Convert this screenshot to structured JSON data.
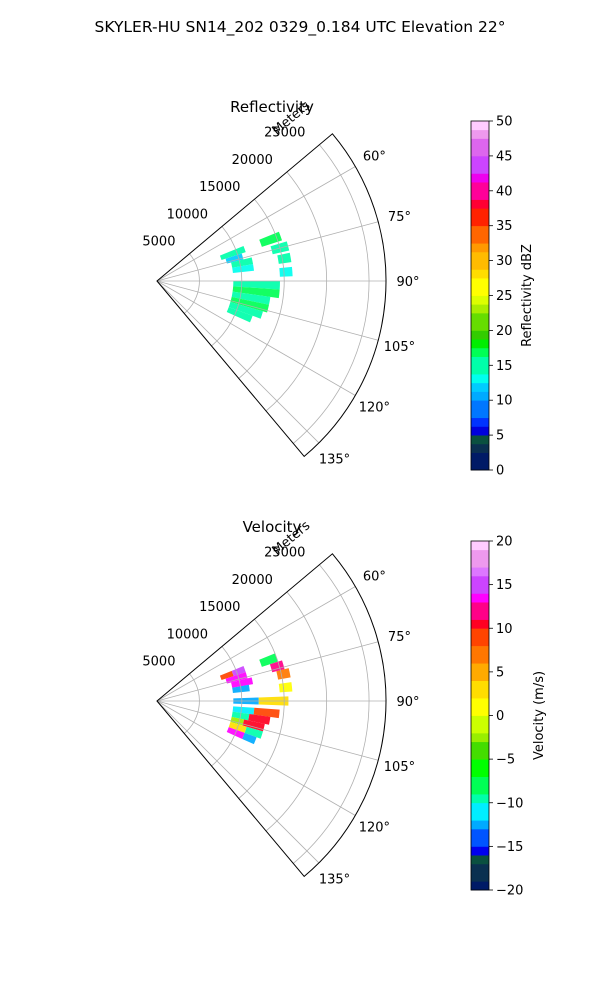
{
  "title": "SKYLER-HU  SN14_202  0329_0.184 UTC Elevation 22°",
  "chart_data": [
    {
      "type": "heatmap",
      "projection": "polar",
      "title": "Reflectivity",
      "range_axis_label": "Meters",
      "range_ticks": [
        5000,
        10000,
        15000,
        20000,
        25000
      ],
      "range_tick_labels": [
        "5000",
        "10000",
        "15000",
        "20000",
        "25000"
      ],
      "range_lim": [
        0,
        27000
      ],
      "azimuth_lim": [
        50,
        140
      ],
      "azimuth_ticks": [
        60,
        75,
        90,
        105,
        120,
        135
      ],
      "azimuth_tick_labels": [
        "60°",
        "75°",
        "90°",
        "105°",
        "120°",
        "135°"
      ],
      "grid": true,
      "colorbar": {
        "label": "Reflectivity dBZ",
        "range": [
          0,
          50
        ],
        "ticks": [
          0,
          5,
          10,
          15,
          20,
          25,
          30,
          35,
          40,
          45,
          50
        ],
        "tick_labels": [
          "0",
          "5",
          "10",
          "15",
          "20",
          "25",
          "30",
          "35",
          "40",
          "45",
          "50"
        ]
      },
      "cells": [
        {
          "az": 70,
          "r1": 8000,
          "r2": 11000,
          "value": 14
        },
        {
          "az": 74,
          "r1": 8500,
          "r2": 10500,
          "value": 12
        },
        {
          "az": 78,
          "r1": 9000,
          "r2": 11500,
          "value": 15
        },
        {
          "az": 82,
          "r1": 9000,
          "r2": 11500,
          "value": 13
        },
        {
          "az": 70,
          "r1": 13000,
          "r2": 15500,
          "value": 16
        },
        {
          "az": 75,
          "r1": 14000,
          "r2": 16000,
          "value": 14
        },
        {
          "az": 80,
          "r1": 14500,
          "r2": 16000,
          "value": 15
        },
        {
          "az": 86,
          "r1": 14500,
          "r2": 16000,
          "value": 13
        },
        {
          "az": 92,
          "r1": 9000,
          "r2": 14500,
          "value": 15
        },
        {
          "az": 96,
          "r1": 9000,
          "r2": 14500,
          "value": 16
        },
        {
          "az": 100,
          "r1": 9000,
          "r2": 13500,
          "value": 15
        },
        {
          "az": 104,
          "r1": 9000,
          "r2": 13500,
          "value": 16
        },
        {
          "az": 108,
          "r1": 9000,
          "r2": 13000,
          "value": 14
        },
        {
          "az": 112,
          "r1": 9000,
          "r2": 12000,
          "value": 15
        }
      ]
    },
    {
      "type": "heatmap",
      "projection": "polar",
      "title": "Velocity",
      "range_axis_label": "Meters",
      "range_ticks": [
        5000,
        10000,
        15000,
        20000,
        25000
      ],
      "range_tick_labels": [
        "5000",
        "10000",
        "15000",
        "20000",
        "25000"
      ],
      "range_lim": [
        0,
        27000
      ],
      "azimuth_lim": [
        50,
        140
      ],
      "azimuth_ticks": [
        60,
        75,
        90,
        105,
        120,
        135
      ],
      "azimuth_tick_labels": [
        "60°",
        "75°",
        "90°",
        "105°",
        "120°",
        "135°"
      ],
      "grid": true,
      "colorbar": {
        "label": "Velocity (m/s)",
        "range": [
          -20,
          20
        ],
        "ticks": [
          -20,
          -15,
          -10,
          -5,
          0,
          5,
          10,
          15,
          20
        ],
        "tick_labels": [
          "−20",
          "−15",
          "−10",
          "−5",
          "0",
          "5",
          "10",
          "15",
          "20"
        ]
      },
      "cells": [
        {
          "az": 70,
          "r1": 8000,
          "r2": 9500,
          "value": 9
        },
        {
          "az": 70,
          "r1": 9500,
          "r2": 11000,
          "value": 15
        },
        {
          "az": 74,
          "r1": 8500,
          "r2": 11000,
          "value": 14
        },
        {
          "az": 78,
          "r1": 9000,
          "r2": 11500,
          "value": 13
        },
        {
          "az": 82,
          "r1": 9000,
          "r2": 11000,
          "value": -12
        },
        {
          "az": 70,
          "r1": 13000,
          "r2": 15000,
          "value": -8
        },
        {
          "az": 74,
          "r1": 14000,
          "r2": 15500,
          "value": 12
        },
        {
          "az": 78,
          "r1": 14500,
          "r2": 16000,
          "value": 6
        },
        {
          "az": 84,
          "r1": 14500,
          "r2": 16000,
          "value": 1
        },
        {
          "az": 90,
          "r1": 9000,
          "r2": 12000,
          "value": -12
        },
        {
          "az": 90,
          "r1": 12000,
          "r2": 15500,
          "value": 3
        },
        {
          "az": 96,
          "r1": 9000,
          "r2": 11500,
          "value": -11
        },
        {
          "az": 96,
          "r1": 11500,
          "r2": 14500,
          "value": 8
        },
        {
          "az": 100,
          "r1": 9000,
          "r2": 11000,
          "value": -10
        },
        {
          "az": 100,
          "r1": 11000,
          "r2": 13500,
          "value": 10
        },
        {
          "az": 104,
          "r1": 9000,
          "r2": 10500,
          "value": -3
        },
        {
          "az": 104,
          "r1": 10500,
          "r2": 13000,
          "value": 11
        },
        {
          "az": 108,
          "r1": 9000,
          "r2": 11000,
          "value": 2
        },
        {
          "az": 108,
          "r1": 11000,
          "r2": 13000,
          "value": -9
        },
        {
          "az": 112,
          "r1": 9000,
          "r2": 11000,
          "value": 14
        },
        {
          "az": 112,
          "r1": 11000,
          "r2": 12500,
          "value": -13
        }
      ]
    }
  ]
}
